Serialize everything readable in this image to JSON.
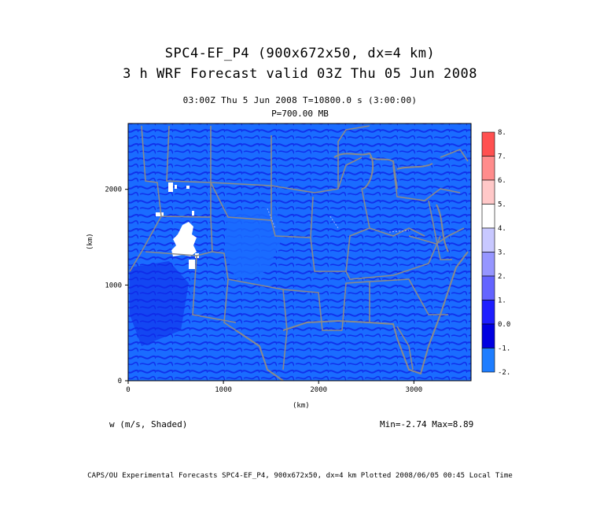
{
  "title_line1": "SPC4-EF_P4 (900x672x50, dx=4 km)",
  "title_line2": "3 h WRF Forecast valid 03Z Thu 05 Jun 2008",
  "time_line": "03:00Z Thu  5 Jun 2008     T=10800.0 s (3:00:00)",
  "level_line": "P=700.00 MB",
  "field_label": "w (m/s, Shaded)",
  "minmax": "Min=-2.74 Max=8.89",
  "footer": "CAPS/OU Experimental Forecasts  SPC4-EF_P4, 900x672x50, dx=4 km  Plotted 2008/06/05 00:45 Local Time",
  "axes": {
    "xlabel": "(km)",
    "ylabel": "(km)",
    "xticks": [
      "0",
      "1000",
      "2000",
      "3000"
    ],
    "yticks": [
      "0",
      "1000",
      "2000"
    ],
    "xlim": [
      0,
      3600
    ],
    "ylim": [
      0,
      2688
    ]
  },
  "colorbar": {
    "levels": [
      "8.",
      "7.",
      "6.",
      "5.",
      "4.",
      "3.",
      "2.",
      "1.",
      "0.0",
      "-1.",
      "-2."
    ],
    "colors": [
      "#ff5050",
      "#ff8c8c",
      "#ffc8c8",
      "#ffffff",
      "#c8c8ff",
      "#9696ff",
      "#6464ff",
      "#1e1eff",
      "#0000e0",
      "#1e7dff",
      "#00ffff"
    ]
  },
  "colors": {
    "background_field": "#1a6cff",
    "dark_field": "#0f28e8",
    "borders": "#8a8a8a",
    "frame": "#000000"
  }
}
